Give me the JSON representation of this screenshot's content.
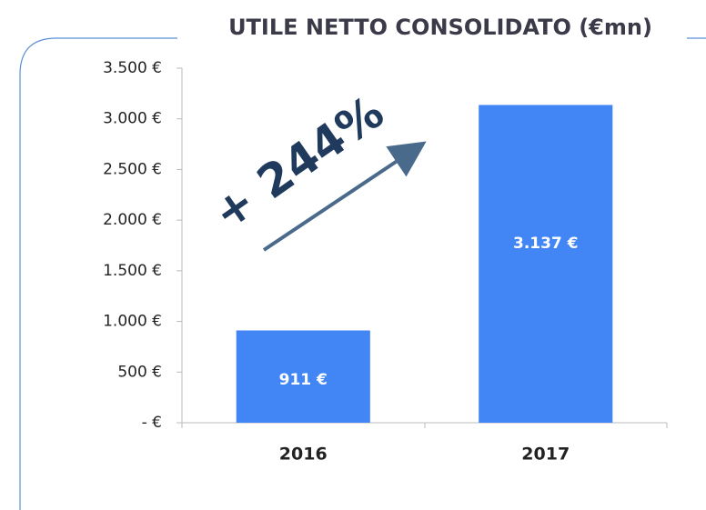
{
  "chart_data": {
    "type": "bar",
    "title": "UTILE NETTO CONSOLIDATO (€mn)",
    "categories": [
      "2016",
      "2017"
    ],
    "values": [
      911,
      3137
    ],
    "value_labels": [
      "911 €",
      "3.137 €"
    ],
    "color": "#4285f4",
    "ylim": [
      0,
      3500
    ],
    "yticks": [
      {
        "value": 0,
        "label": "-   €"
      },
      {
        "value": 500,
        "label": "500 €"
      },
      {
        "value": 1000,
        "label": "1.000 €"
      },
      {
        "value": 1500,
        "label": "1.500 €"
      },
      {
        "value": 2000,
        "label": "2.000 €"
      },
      {
        "value": 2500,
        "label": "2.500 €"
      },
      {
        "value": 3000,
        "label": "3.000 €"
      },
      {
        "value": 3500,
        "label": "3.500 €"
      }
    ],
    "grid": false,
    "annotation": "+ 244%"
  }
}
